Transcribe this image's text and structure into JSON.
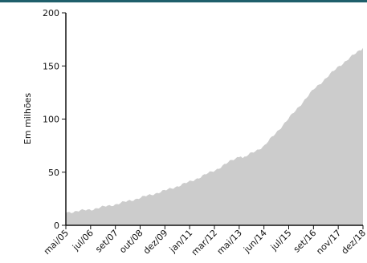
{
  "colors": {
    "accent_bar": "#1f5f6b",
    "area_fill": "#cccccc",
    "axis": "#111111"
  },
  "chart_data": {
    "type": "area",
    "title": "",
    "xlabel": "",
    "ylabel": "Em milhões",
    "ylim": [
      0,
      200
    ],
    "yticks": [
      0,
      50,
      100,
      150,
      200
    ],
    "xlim": [
      "2005-05",
      "2018-12"
    ],
    "xticks": [
      "mai/05",
      "jul/06",
      "set/07",
      "out/08",
      "dez/09",
      "jan/11",
      "mar/12",
      "mai/13",
      "jun/14",
      "jul/15",
      "set/16",
      "nov/17",
      "dez/18"
    ],
    "grid": false,
    "legend": "none",
    "series": [
      {
        "x": [
          "2005-05",
          "2006-07",
          "2007-09",
          "2008-10",
          "2009-12",
          "2011-01",
          "2012-03",
          "2013-03",
          "2013-05",
          "2013-06",
          "2014-06",
          "2015-07",
          "2016-09",
          "2017-11",
          "2018-12"
        ],
        "values": [
          12,
          15,
          20,
          26,
          33,
          41,
          52,
          64,
          66,
          63,
          75,
          100,
          128,
          150,
          167
        ]
      }
    ]
  }
}
